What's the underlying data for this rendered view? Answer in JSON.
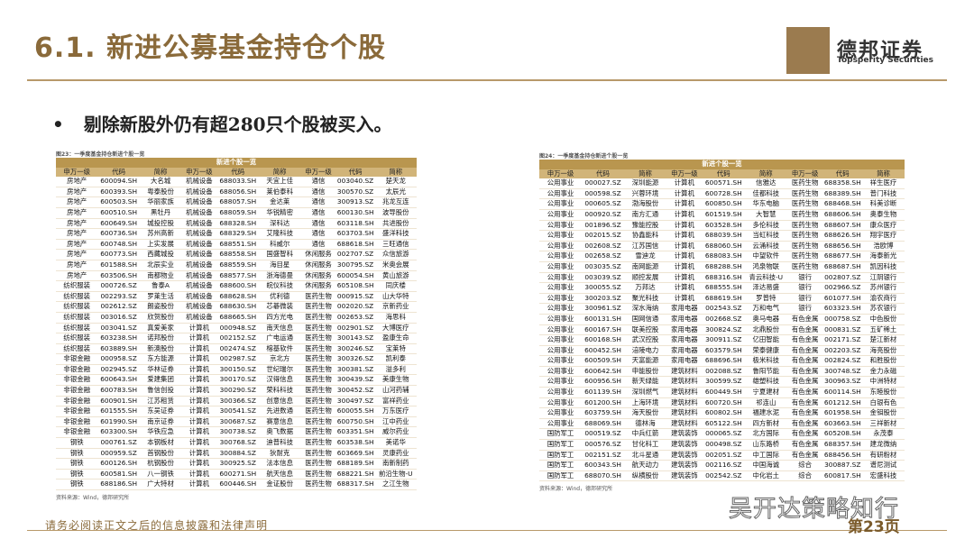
{
  "header": {
    "title": "6.1. 新进公募基金持仓个股",
    "logo_name": "德邦证券",
    "logo_sub": "Topsperity Securities"
  },
  "bullet": "剔除新股外仍有超280只个股被买入。",
  "tables": [
    {
      "caption": "图23：一季度基金持仓新进个股一览",
      "group_header": "新进个股一览",
      "columns": [
        "申万一级",
        "代码",
        "简称",
        "申万一级",
        "代码",
        "简称",
        "申万一级",
        "代码",
        "简称"
      ],
      "rows": [
        [
          "房地产",
          "600094.SH",
          "大名城",
          "机械设备",
          "688033.SH",
          "天宜上佳",
          "通信",
          "003040.SZ",
          "楚天龙"
        ],
        [
          "房地产",
          "600393.SH",
          "粤泰股份",
          "机械设备",
          "688056.SH",
          "莱伯泰科",
          "通信",
          "300570.SZ",
          "太辰光"
        ],
        [
          "房地产",
          "600503.SH",
          "华丽家族",
          "机械设备",
          "688057.SH",
          "金达莱",
          "通信",
          "300913.SZ",
          "兆龙互连"
        ],
        [
          "房地产",
          "600510.SH",
          "黑牡丹",
          "机械设备",
          "688059.SH",
          "华锐精密",
          "通信",
          "600130.SH",
          "波导股份"
        ],
        [
          "房地产",
          "600649.SH",
          "城投控股",
          "机械设备",
          "688328.SH",
          "深科达",
          "通信",
          "603118.SH",
          "共进股份"
        ],
        [
          "房地产",
          "600736.SH",
          "苏州高新",
          "机械设备",
          "688329.SH",
          "艾隆科技",
          "通信",
          "603703.SH",
          "盛洋科技"
        ],
        [
          "房地产",
          "600748.SH",
          "上实发展",
          "机械设备",
          "688551.SH",
          "科威尔",
          "通信",
          "688618.SH",
          "三旺通信"
        ],
        [
          "房地产",
          "600773.SH",
          "西藏城投",
          "机械设备",
          "688558.SH",
          "国盛智科",
          "休闲服务",
          "002707.SZ",
          "众信旅游"
        ],
        [
          "房地产",
          "601588.SH",
          "北辰实业",
          "机械设备",
          "688559.SH",
          "海目星",
          "休闲服务",
          "300795.SZ",
          "米奥会展"
        ],
        [
          "房地产",
          "603506.SH",
          "南都物业",
          "机械设备",
          "688577.SH",
          "浙海德曼",
          "休闲服务",
          "600054.SH",
          "黄山旅游"
        ],
        [
          "纺织服装",
          "000726.SZ",
          "鲁泰A",
          "机械设备",
          "688600.SH",
          "皖仪科技",
          "休闲服务",
          "605108.SH",
          "同庆楼"
        ],
        [
          "纺织服装",
          "002293.SZ",
          "罗莱生活",
          "机械设备",
          "688628.SH",
          "优利德",
          "医药生物",
          "000915.SZ",
          "山大华特"
        ],
        [
          "纺织服装",
          "002612.SZ",
          "朗姿股份",
          "机械设备",
          "688630.SH",
          "芯碁微装",
          "医药生物",
          "002020.SZ",
          "京新药业"
        ],
        [
          "纺织服装",
          "003016.SZ",
          "欣贺股份",
          "机械设备",
          "688665.SH",
          "四方光电",
          "医药生物",
          "002653.SZ",
          "海思科"
        ],
        [
          "纺织服装",
          "003041.SZ",
          "真爱美家",
          "计算机",
          "000948.SZ",
          "南天信息",
          "医药生物",
          "002901.SZ",
          "大博医疗"
        ],
        [
          "纺织服装",
          "603238.SH",
          "诺邦股份",
          "计算机",
          "002152.SZ",
          "广电运通",
          "医药生物",
          "300143.SZ",
          "盈康生命"
        ],
        [
          "纺织服装",
          "603889.SH",
          "新澳股份",
          "计算机",
          "002474.SZ",
          "榕基软件",
          "医药生物",
          "300246.SZ",
          "宝莱特"
        ],
        [
          "非银金融",
          "000958.SZ",
          "东方能源",
          "计算机",
          "002987.SZ",
          "京北方",
          "医药生物",
          "300326.SZ",
          "凯利泰"
        ],
        [
          "非银金融",
          "002945.SZ",
          "华林证券",
          "计算机",
          "300150.SZ",
          "世纪瑞尔",
          "医药生物",
          "300381.SZ",
          "溢多利"
        ],
        [
          "非银金融",
          "600643.SH",
          "爱建集团",
          "计算机",
          "300170.SZ",
          "汉得信息",
          "医药生物",
          "300439.SZ",
          "美康生物"
        ],
        [
          "非银金融",
          "600783.SH",
          "鲁信创投",
          "计算机",
          "300290.SZ",
          "荣科科技",
          "医药生物",
          "300452.SZ",
          "山河药辅"
        ],
        [
          "非银金融",
          "600901.SH",
          "江苏租赁",
          "计算机",
          "300366.SZ",
          "创意信息",
          "医药生物",
          "300497.SZ",
          "富祥药业"
        ],
        [
          "非银金融",
          "601555.SH",
          "东吴证券",
          "计算机",
          "300541.SZ",
          "先进数通",
          "医药生物",
          "600055.SH",
          "万东医疗"
        ],
        [
          "非银金融",
          "601990.SH",
          "南京证券",
          "计算机",
          "300687.SZ",
          "赛意信息",
          "医药生物",
          "600750.SH",
          "江中药业"
        ],
        [
          "非银金融",
          "603300.SH",
          "华铁应急",
          "计算机",
          "300738.SZ",
          "奥飞数据",
          "医药生物",
          "603351.SH",
          "威尔药业"
        ],
        [
          "钢铁",
          "000761.SZ",
          "本钢板材",
          "计算机",
          "300768.SZ",
          "迪普科技",
          "医药生物",
          "603538.SH",
          "美诺华"
        ],
        [
          "钢铁",
          "000959.SZ",
          "首钢股份",
          "计算机",
          "300884.SZ",
          "狄耐克",
          "医药生物",
          "603669.SH",
          "灵康药业"
        ],
        [
          "钢铁",
          "600126.SH",
          "杭钢股份",
          "计算机",
          "300925.SZ",
          "法本信息",
          "医药生物",
          "688189.SH",
          "南新制药"
        ],
        [
          "钢铁",
          "600581.SH",
          "八一钢铁",
          "计算机",
          "600271.SH",
          "航天信息",
          "医药生物",
          "688221.SH",
          "前沿生物-U"
        ],
        [
          "钢铁",
          "688186.SH",
          "广大特材",
          "计算机",
          "600446.SH",
          "金证股份",
          "医药生物",
          "688317.SH",
          "之江生物"
        ]
      ],
      "source": "资料来源：Wind，德邦研究所"
    },
    {
      "caption": "图24：一季度基金持仓新进个股一览",
      "group_header": "新进个股一览",
      "columns": [
        "申万一级",
        "代码",
        "简称",
        "申万一级",
        "代码",
        "简称",
        "申万一级",
        "代码",
        "简称"
      ],
      "rows": [
        [
          "公用事业",
          "000027.SZ",
          "深圳能源",
          "计算机",
          "600571.SH",
          "信雅达",
          "医药生物",
          "688358.SH",
          "祥生医疗"
        ],
        [
          "公用事业",
          "000598.SZ",
          "兴蓉环境",
          "计算机",
          "600728.SH",
          "佳都科技",
          "医药生物",
          "688389.SH",
          "普门科技"
        ],
        [
          "公用事业",
          "000605.SZ",
          "渤海股份",
          "计算机",
          "600850.SH",
          "华东电脑",
          "医药生物",
          "688468.SH",
          "科美诊断"
        ],
        [
          "公用事业",
          "000920.SZ",
          "南方汇通",
          "计算机",
          "601519.SH",
          "大智慧",
          "医药生物",
          "688606.SH",
          "奥泰生物"
        ],
        [
          "公用事业",
          "001896.SZ",
          "豫能控股",
          "计算机",
          "603528.SH",
          "多伦科技",
          "医药生物",
          "688607.SH",
          "康众医疗"
        ],
        [
          "公用事业",
          "002015.SZ",
          "协鑫能科",
          "计算机",
          "688039.SH",
          "当虹科技",
          "医药生物",
          "688626.SH",
          "翔宇医疗"
        ],
        [
          "公用事业",
          "002608.SZ",
          "江苏国信",
          "计算机",
          "688060.SH",
          "云涌科技",
          "医药生物",
          "688656.SH",
          "浩欧博"
        ],
        [
          "公用事业",
          "002658.SZ",
          "雪迪龙",
          "计算机",
          "688083.SH",
          "中望软件",
          "医药生物",
          "688677.SH",
          "海泰新光"
        ],
        [
          "公用事业",
          "003035.SZ",
          "南网能源",
          "计算机",
          "688288.SH",
          "鸿泉物联",
          "医药生物",
          "688687.SH",
          "凯因科技"
        ],
        [
          "公用事业",
          "003039.SZ",
          "顺控发展",
          "计算机",
          "688316.SH",
          "青云科技-U",
          "银行",
          "002807.SZ",
          "江阴银行"
        ],
        [
          "公用事业",
          "300055.SZ",
          "万邦达",
          "计算机",
          "688555.SH",
          "泽达易盛",
          "银行",
          "002966.SZ",
          "苏州银行"
        ],
        [
          "公用事业",
          "300203.SZ",
          "聚光科技",
          "计算机",
          "688619.SH",
          "罗普特",
          "银行",
          "601077.SH",
          "渝农商行"
        ],
        [
          "公用事业",
          "300961.SZ",
          "深水海纳",
          "家用电器",
          "002543.SZ",
          "万和电气",
          "银行",
          "603323.SH",
          "苏农银行"
        ],
        [
          "公用事业",
          "600131.SH",
          "国网信通",
          "家用电器",
          "002668.SZ",
          "奥马电器",
          "有色金属",
          "000758.SZ",
          "中色股份"
        ],
        [
          "公用事业",
          "600167.SH",
          "联美控股",
          "家用电器",
          "300824.SZ",
          "北鼎股份",
          "有色金属",
          "000831.SZ",
          "五矿稀土"
        ],
        [
          "公用事业",
          "600168.SH",
          "武汉控股",
          "家用电器",
          "300911.SZ",
          "亿田智能",
          "有色金属",
          "002171.SZ",
          "楚江新材"
        ],
        [
          "公用事业",
          "600452.SH",
          "涪陵电力",
          "家用电器",
          "603579.SH",
          "荣泰健康",
          "有色金属",
          "002203.SZ",
          "海亮股份"
        ],
        [
          "公用事业",
          "600509.SH",
          "天富能源",
          "家用电器",
          "688696.SH",
          "极米科技",
          "有色金属",
          "002824.SZ",
          "和胜股份"
        ],
        [
          "公用事业",
          "600642.SH",
          "申能股份",
          "建筑材料",
          "002088.SZ",
          "鲁阳节能",
          "有色金属",
          "300748.SZ",
          "金力永磁"
        ],
        [
          "公用事业",
          "600956.SH",
          "新天绿能",
          "建筑材料",
          "300599.SZ",
          "雄塑科技",
          "有色金属",
          "300963.SZ",
          "中洲特材"
        ],
        [
          "公用事业",
          "601139.SH",
          "深圳燃气",
          "建筑材料",
          "600449.SH",
          "宁夏建材",
          "有色金属",
          "600114.SH",
          "东睦股份"
        ],
        [
          "公用事业",
          "601200.SH",
          "上海环境",
          "建筑材料",
          "600720.SH",
          "祁连山",
          "有色金属",
          "601212.SH",
          "白银有色"
        ],
        [
          "公用事业",
          "603759.SH",
          "海天股份",
          "建筑材料",
          "600802.SH",
          "福建水泥",
          "有色金属",
          "601958.SH",
          "金钼股份"
        ],
        [
          "公用事业",
          "688069.SH",
          "德林海",
          "建筑材料",
          "605122.SH",
          "四方新材",
          "有色金属",
          "603663.SH",
          "三祥新材"
        ],
        [
          "国防军工",
          "000519.SZ",
          "中兵红箭",
          "建筑装饰",
          "000065.SZ",
          "北方国际",
          "有色金属",
          "605208.SH",
          "永茂泰"
        ],
        [
          "国防军工",
          "000576.SZ",
          "甘化科工",
          "建筑装饰",
          "000498.SZ",
          "山东路桥",
          "有色金属",
          "688357.SH",
          "建龙微纳"
        ],
        [
          "国防军工",
          "002151.SZ",
          "北斗星通",
          "建筑装饰",
          "002051.SZ",
          "中工国际",
          "有色金属",
          "688456.SH",
          "有研粉材"
        ],
        [
          "国防军工",
          "600343.SH",
          "航天动力",
          "建筑装饰",
          "002116.SZ",
          "中国海诚",
          "综合",
          "300887.SZ",
          "谱尼测试"
        ],
        [
          "国防军工",
          "688070.SH",
          "纵横股份",
          "建筑装饰",
          "002542.SZ",
          "中化岩土",
          "综合",
          "600817.SH",
          "宏盛科技"
        ]
      ],
      "source": "资料来源：Wind，德邦研究所"
    }
  ],
  "watermark": "吴开达策略知行",
  "footer": {
    "disclaimer": "请务必阅读正文之后的信息披露和法律声明",
    "page": "第23页"
  }
}
